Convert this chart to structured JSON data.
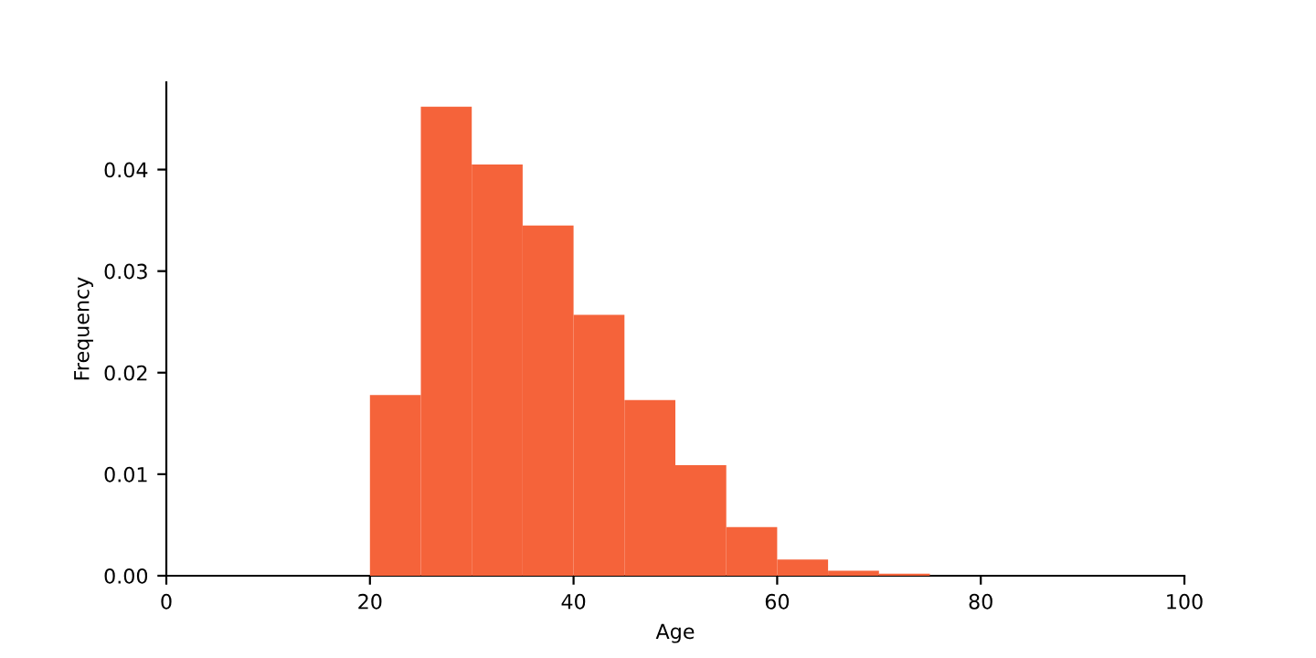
{
  "chart_data": {
    "type": "histogram",
    "xlabel": "Age",
    "ylabel": "Frequency",
    "bins": [
      20,
      25,
      30,
      35,
      40,
      45,
      50,
      55,
      60,
      65,
      70,
      75
    ],
    "values": [
      0.0178,
      0.0462,
      0.0405,
      0.0345,
      0.0257,
      0.0173,
      0.0109,
      0.0048,
      0.0016,
      0.0005,
      0.0002
    ],
    "color": "#f5633a",
    "xlim": [
      0,
      100
    ],
    "xticks": [
      0,
      20,
      40,
      60,
      80,
      100
    ],
    "ylim": [
      0,
      0.0486
    ],
    "yticks": [
      {
        "value": 0,
        "label": "0.00"
      },
      {
        "value": 0.01,
        "label": "0.01"
      },
      {
        "value": 0.02,
        "label": "0.02"
      },
      {
        "value": 0.03,
        "label": "0.03"
      },
      {
        "value": 0.04,
        "label": "0.04"
      }
    ],
    "grid": false
  }
}
